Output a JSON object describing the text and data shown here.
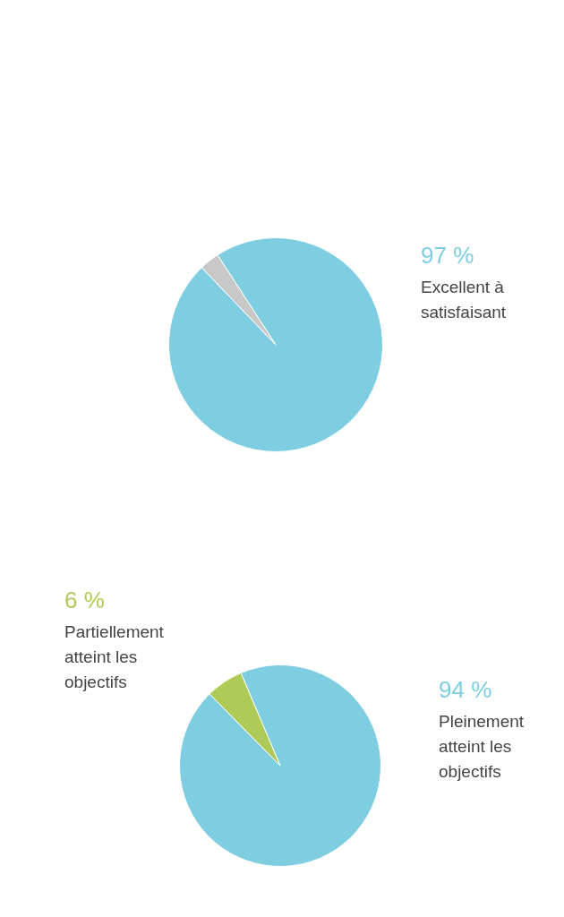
{
  "chart_data": [
    {
      "type": "pie",
      "categories": [
        "Excellent à satisfaisant",
        null
      ],
      "values": [
        97,
        3
      ],
      "colors": [
        "#7ecde1",
        "#c8c8c8"
      ],
      "value_labels": [
        "97 %",
        null
      ]
    },
    {
      "type": "pie",
      "categories": [
        "Pleinement atteint les objectifs",
        "Partiellement atteint les objectifs"
      ],
      "values": [
        94,
        6
      ],
      "colors": [
        "#7ecde1",
        "#afcb57"
      ],
      "value_labels": [
        "94 %",
        "6 %"
      ]
    }
  ]
}
